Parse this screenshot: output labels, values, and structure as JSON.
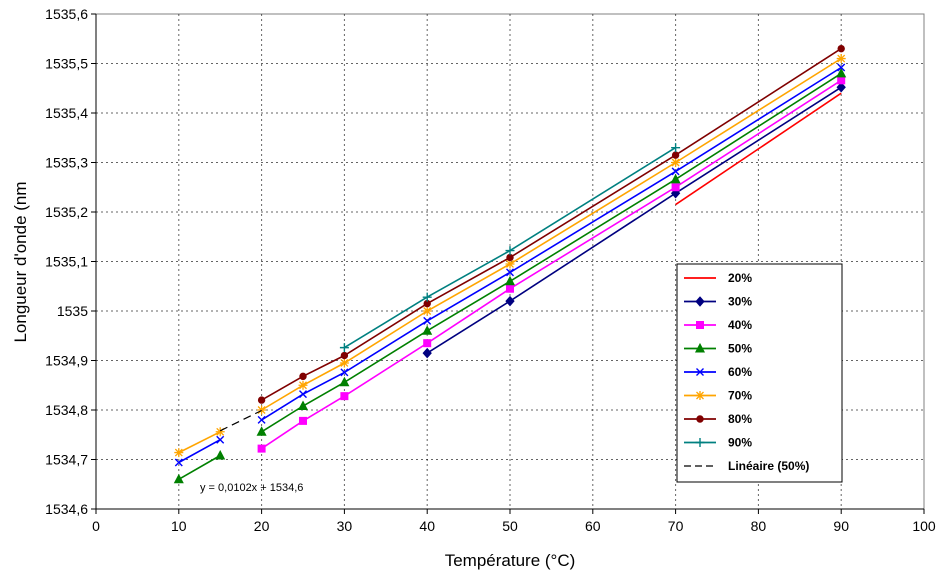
{
  "chart_data": {
    "type": "line",
    "title": "",
    "xlabel": "Température (°C)",
    "ylabel": "Longueur d'onde (nm",
    "xlim": [
      0,
      100
    ],
    "ylim": [
      1534.6,
      1535.6
    ],
    "xticks": [
      0,
      10,
      20,
      30,
      40,
      50,
      60,
      70,
      80,
      90,
      100
    ],
    "xtick_labels": [
      "0",
      "10",
      "20",
      "30",
      "40",
      "50",
      "60",
      "70",
      "80",
      "90",
      "100"
    ],
    "yticks": [
      1534.6,
      1534.7,
      1534.8,
      1534.9,
      1535.0,
      1535.1,
      1535.2,
      1535.3,
      1535.4,
      1535.5,
      1535.6
    ],
    "ytick_labels": [
      "1534,6",
      "1534,7",
      "1534,8",
      "1534,9",
      "1535",
      "1535,1",
      "1535,2",
      "1535,3",
      "1535,4",
      "1535,5",
      "1535,6"
    ],
    "grid": true,
    "legend_position": "right",
    "series": [
      {
        "name": "20%",
        "color": "#ff0000",
        "marker": "none",
        "points": [
          [
            70,
            1535.215
          ],
          [
            90,
            1535.44
          ]
        ]
      },
      {
        "name": "30%",
        "color": "#000080",
        "marker": "diamond",
        "points": [
          [
            40,
            1534.915
          ],
          [
            50,
            1535.02
          ],
          [
            70,
            1535.238
          ],
          [
            90,
            1535.452
          ]
        ]
      },
      {
        "name": "40%",
        "color": "#ff00ff",
        "marker": "square",
        "points": [
          [
            20,
            1534.722
          ],
          [
            25,
            1534.778
          ],
          [
            30,
            1534.828
          ],
          [
            40,
            1534.935
          ],
          [
            50,
            1535.045
          ],
          [
            70,
            1535.25
          ],
          [
            90,
            1535.466
          ]
        ]
      },
      {
        "name": "50%",
        "color": "#008000",
        "marker": "triangle",
        "points": [
          [
            10,
            1534.66
          ],
          [
            15,
            1534.708
          ],
          [
            20,
            1534.756
          ],
          [
            25,
            1534.808
          ],
          [
            30,
            1534.856
          ],
          [
            40,
            1534.96
          ],
          [
            50,
            1535.06
          ],
          [
            70,
            1535.266
          ],
          [
            90,
            1535.48
          ]
        ]
      },
      {
        "name": "60%",
        "color": "#0000ff",
        "marker": "x",
        "points": [
          [
            10,
            1534.694
          ],
          [
            15,
            1534.74
          ],
          [
            20,
            1534.78
          ],
          [
            25,
            1534.832
          ],
          [
            30,
            1534.876
          ],
          [
            40,
            1534.98
          ],
          [
            50,
            1535.078
          ],
          [
            70,
            1535.282
          ],
          [
            90,
            1535.492
          ]
        ]
      },
      {
        "name": "70%",
        "color": "#ffa500",
        "marker": "star",
        "points": [
          [
            10,
            1534.714
          ],
          [
            15,
            1534.756
          ],
          [
            20,
            1534.8
          ],
          [
            25,
            1534.85
          ],
          [
            30,
            1534.895
          ],
          [
            40,
            1535.0
          ],
          [
            50,
            1535.095
          ],
          [
            70,
            1535.3
          ],
          [
            90,
            1535.51
          ]
        ]
      },
      {
        "name": "80%",
        "color": "#800000",
        "marker": "circle",
        "points": [
          [
            20,
            1534.82
          ],
          [
            25,
            1534.868
          ],
          [
            30,
            1534.91
          ],
          [
            40,
            1535.015
          ],
          [
            50,
            1535.108
          ],
          [
            70,
            1535.315
          ],
          [
            90,
            1535.53
          ]
        ]
      },
      {
        "name": "90%",
        "color": "#008080",
        "marker": "plus",
        "points": [
          [
            30,
            1534.926
          ],
          [
            40,
            1535.028
          ],
          [
            50,
            1535.122
          ],
          [
            70,
            1535.33
          ]
        ]
      }
    ],
    "trendline": {
      "name": "Linéaire (50%)",
      "color": "#000000",
      "dash": "8,5",
      "slope": 0.0102,
      "intercept": 1534.6,
      "x_range": [
        10,
        90
      ],
      "visible_segments": [
        [
          15,
          20
        ]
      ],
      "equation": "y = 0,0102x + 1534,6"
    }
  }
}
